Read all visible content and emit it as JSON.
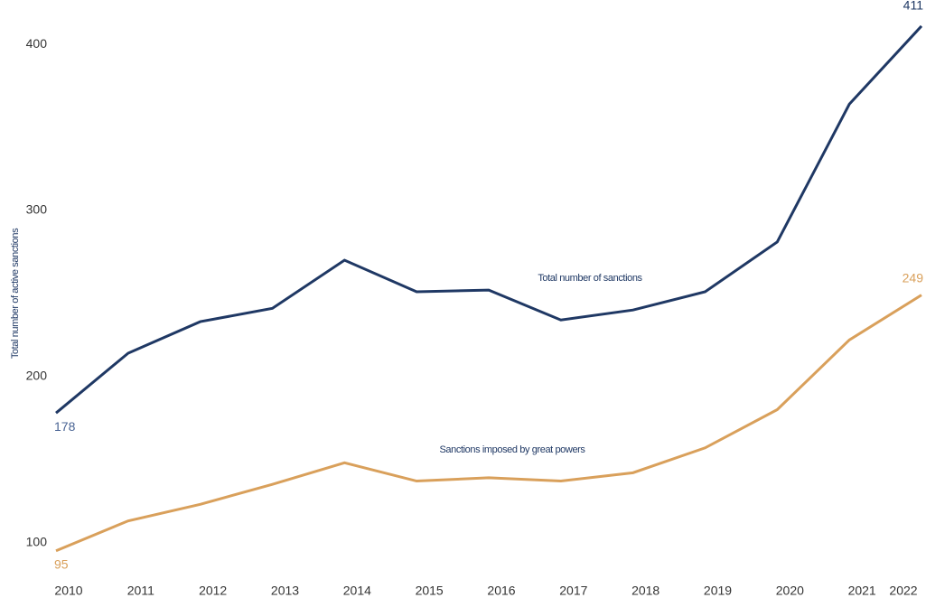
{
  "chart_data": {
    "type": "line",
    "y_label": "Total number of active sanctions",
    "x": [
      2010,
      2011,
      2012,
      2013,
      2014,
      2015,
      2016,
      2017,
      2018,
      2019,
      2020,
      2021,
      2022
    ],
    "xlim": [
      2010,
      2022
    ],
    "xticks": [
      2010,
      2011,
      2012,
      2013,
      2014,
      2015,
      2016,
      2017,
      2018,
      2019,
      2020,
      2021,
      2022
    ],
    "ylim": [
      78,
      418
    ],
    "yticks": [
      100,
      200,
      300,
      400
    ],
    "grid": false,
    "series": [
      {
        "name": "Total number of sanctions",
        "color": "#1f3864",
        "values": [
          178,
          214,
          233,
          241,
          270,
          251,
          252,
          234,
          240,
          251,
          281,
          364,
          411
        ]
      },
      {
        "name": "Sanctions imposed by great powers",
        "color": "#d9a05b",
        "values": [
          95,
          113,
          123,
          135,
          148,
          137,
          139,
          137,
          142,
          157,
          180,
          222,
          249
        ]
      }
    ]
  }
}
